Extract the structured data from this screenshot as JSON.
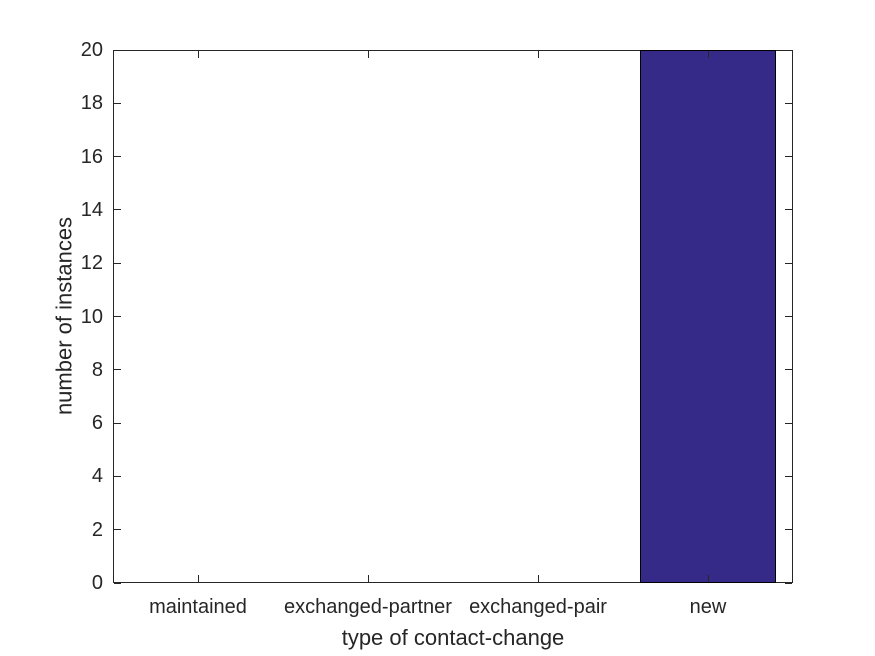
{
  "chart_data": {
    "type": "bar",
    "categories": [
      "maintained",
      "exchanged-partner",
      "exchanged-pair",
      "new"
    ],
    "values": [
      0,
      0,
      0,
      20
    ],
    "xlabel": "type of contact-change",
    "ylabel": "number of instances",
    "ylim": [
      0,
      20
    ],
    "ytick_step": 2,
    "ytick_labels": [
      "0",
      "2",
      "4",
      "6",
      "8",
      "10",
      "12",
      "14",
      "16",
      "18",
      "20"
    ],
    "bar_width_fraction": 0.8,
    "grid": false,
    "legend": "none",
    "box": "on",
    "tick_direction": "in",
    "colors": {
      "bar_fill": "#352a87",
      "bar_edge": "#000000",
      "axis": "#262626",
      "text": "#262626",
      "background": "#ffffff"
    }
  }
}
